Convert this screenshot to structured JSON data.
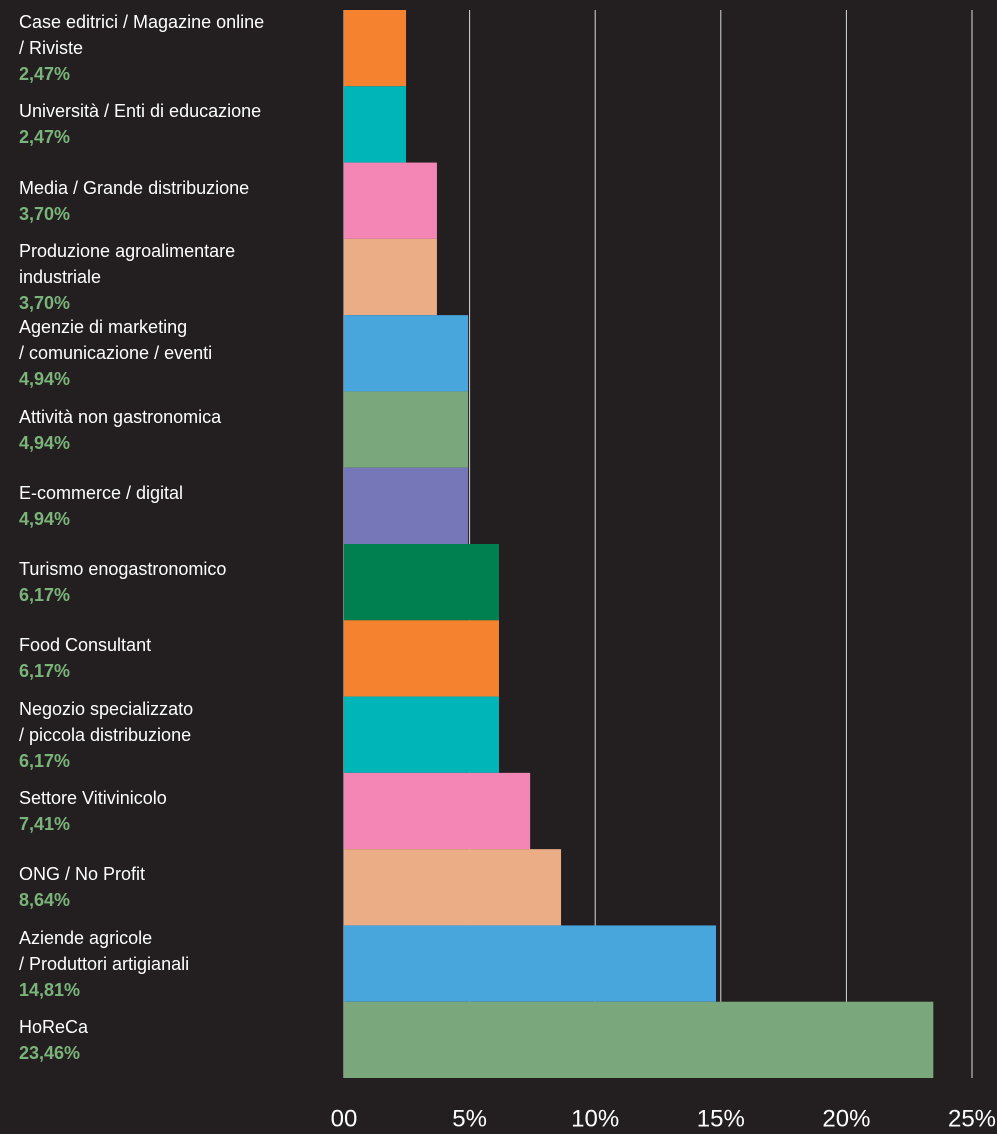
{
  "chart_data": {
    "type": "bar",
    "orientation": "horizontal",
    "categories": [
      "Case editrici / Magazine online\n/ Riviste",
      "Università / Enti di educazione",
      "Media / Grande distribuzione",
      "Produzione agroalimentare\nindustriale",
      "Agenzie di marketing\n/ comunicazione / eventi",
      "Attività non gastronomica",
      "E-commerce / digital",
      "Turismo enogastronomico",
      "Food Consultant",
      "Negozio specializzato\n/ piccola distribuzione",
      "Settore Vitivinicolo",
      "ONG / No Profit",
      "Aziende agricole\n/ Produttori artigianali",
      "HoReCa"
    ],
    "values": [
      2.47,
      2.47,
      3.7,
      3.7,
      4.94,
      4.94,
      4.94,
      6.17,
      6.17,
      6.17,
      7.41,
      8.64,
      14.81,
      23.46
    ],
    "value_labels": [
      "2,47%",
      "2,47%",
      "3,70%",
      "3,70%",
      "4,94%",
      "4,94%",
      "4,94%",
      "6,17%",
      "6,17%",
      "6,17%",
      "7,41%",
      "8,64%",
      "14,81%",
      "23,46%"
    ],
    "colors": [
      "#f5822f",
      "#00b5b8",
      "#f386b5",
      "#eaad86",
      "#48a6dc",
      "#7ba77c",
      "#7677b8",
      "#008051",
      "#f5822f",
      "#00b5b8",
      "#f386b5",
      "#eaad86",
      "#48a6dc",
      "#7ba77c"
    ],
    "xlim": [
      0,
      25
    ],
    "xticks": [
      {
        "value": 0,
        "label": "00"
      },
      {
        "value": 5,
        "label": "5%"
      },
      {
        "value": 10,
        "label": "10%"
      },
      {
        "value": 15,
        "label": "15%"
      },
      {
        "value": 20,
        "label": "20%"
      },
      {
        "value": 25,
        "label": "25%"
      }
    ],
    "grid": true
  }
}
